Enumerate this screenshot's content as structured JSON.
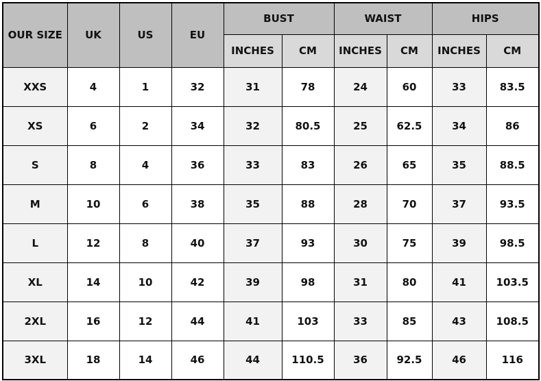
{
  "headers": {
    "our_size": "OUR SIZE",
    "uk": "UK",
    "us": "US",
    "eu": "EU",
    "bust": "BUST",
    "waist": "WAIST",
    "hips": "HIPS",
    "inches": "INCHES",
    "cm": "CM"
  },
  "colors": {
    "header": "#bfbfbf",
    "subheader": "#d9d9d9",
    "shaded_cell": "#f2f2f2"
  },
  "rows": [
    [
      "XXS",
      "4",
      "1",
      "32",
      "31",
      "78",
      "24",
      "60",
      "33",
      "83.5"
    ],
    [
      "XS",
      "6",
      "2",
      "34",
      "32",
      "80.5",
      "25",
      "62.5",
      "34",
      "86"
    ],
    [
      "S",
      "8",
      "4",
      "36",
      "33",
      "83",
      "26",
      "65",
      "35",
      "88.5"
    ],
    [
      "M",
      "10",
      "6",
      "38",
      "35",
      "88",
      "28",
      "70",
      "37",
      "93.5"
    ],
    [
      "L",
      "12",
      "8",
      "40",
      "37",
      "93",
      "30",
      "75",
      "39",
      "98.5"
    ],
    [
      "XL",
      "14",
      "10",
      "42",
      "39",
      "98",
      "31",
      "80",
      "41",
      "103.5"
    ],
    [
      "2XL",
      "16",
      "12",
      "44",
      "41",
      "103",
      "33",
      "85",
      "43",
      "108.5"
    ],
    [
      "3XL",
      "18",
      "14",
      "46",
      "44",
      "110.5",
      "36",
      "92.5",
      "46",
      "116"
    ]
  ]
}
